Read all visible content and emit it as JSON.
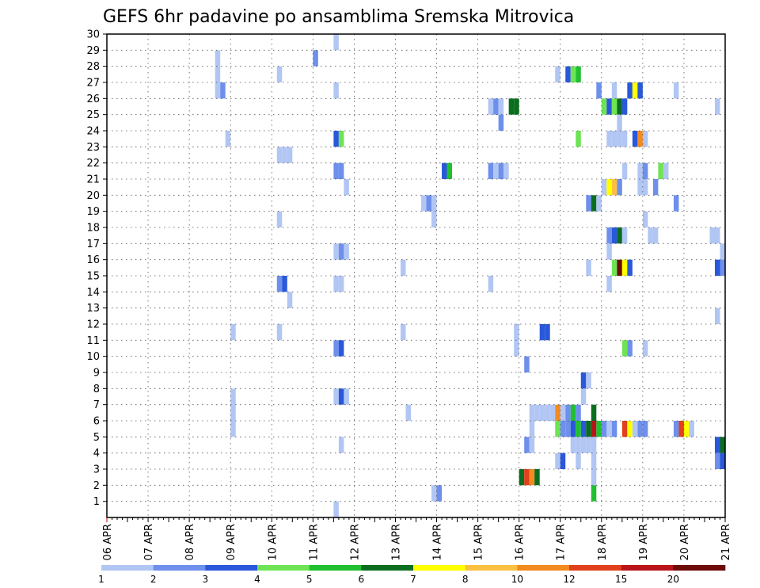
{
  "chart_data": {
    "type": "heatmap",
    "title": "GEFS 6hr padavine po ansamblima Sremska Mitrovica",
    "xlabel": "",
    "ylabel": "",
    "x_ticks": [
      "06 APR",
      "07 APR",
      "08 APR",
      "09 APR",
      "10 APR",
      "11 APR",
      "12 APR",
      "13 APR",
      "14 APR",
      "15 APR",
      "16 APR",
      "17 APR",
      "18 APR",
      "19 APR",
      "20 APR",
      "21 APR"
    ],
    "y_ticks": [
      "1",
      "2",
      "3",
      "4",
      "5",
      "6",
      "7",
      "8",
      "9",
      "10",
      "11",
      "12",
      "13",
      "14",
      "15",
      "16",
      "17",
      "18",
      "19",
      "20",
      "21",
      "22",
      "23",
      "24",
      "25",
      "26",
      "27",
      "28",
      "29",
      "30"
    ],
    "xlim": [
      "06 APR 00Z",
      "21 APR 00Z"
    ],
    "ylim": [
      0,
      30
    ],
    "grid": true,
    "colorbar": {
      "labels": [
        "1",
        "2",
        "3",
        "4",
        "5",
        "6",
        "7",
        "8",
        "10",
        "12",
        "15",
        "20"
      ],
      "colors": [
        "#b2c6f4",
        "#6e90ec",
        "#2a58da",
        "#6ee454",
        "#20c030",
        "#0a6e1e",
        "#ffff00",
        "#fcc040",
        "#f38a1e",
        "#e0401c",
        "#b8141a",
        "#6e0a0a"
      ]
    },
    "cells": [
      [
        30,
        24,
        1
      ],
      [
        30,
        34,
        1
      ],
      [
        30,
        35,
        2
      ],
      [
        30,
        44,
        1
      ],
      [
        30,
        45,
        2
      ],
      [
        30,
        68,
        1
      ],
      [
        30,
        69,
        2
      ],
      [
        30,
        75,
        2
      ],
      [
        29,
        44,
        1
      ],
      [
        28,
        21,
        1
      ],
      [
        28,
        40,
        2
      ],
      [
        27,
        21,
        1
      ],
      [
        27,
        33,
        1
      ],
      [
        27,
        87,
        1
      ],
      [
        27,
        89,
        3
      ],
      [
        27,
        90,
        4
      ],
      [
        27,
        91,
        5
      ],
      [
        26,
        21,
        1
      ],
      [
        26,
        22,
        2
      ],
      [
        26,
        44,
        1
      ],
      [
        26,
        95,
        2
      ],
      [
        26,
        98,
        1
      ],
      [
        26,
        101,
        3
      ],
      [
        26,
        102,
        7
      ],
      [
        26,
        103,
        3
      ],
      [
        26,
        110,
        1
      ],
      [
        25,
        74,
        1
      ],
      [
        25,
        75,
        2
      ],
      [
        25,
        76,
        1
      ],
      [
        25,
        78,
        6
      ],
      [
        25,
        79,
        6
      ],
      [
        25,
        96,
        4
      ],
      [
        25,
        97,
        3
      ],
      [
        25,
        98,
        4
      ],
      [
        25,
        99,
        6
      ],
      [
        25,
        100,
        3
      ],
      [
        25,
        118,
        1
      ],
      [
        24,
        76,
        2
      ],
      [
        24,
        99,
        1
      ],
      [
        23,
        23,
        1
      ],
      [
        23,
        44,
        3
      ],
      [
        23,
        45,
        4
      ],
      [
        23,
        91,
        4
      ],
      [
        23,
        97,
        1
      ],
      [
        23,
        98,
        1
      ],
      [
        23,
        99,
        1
      ],
      [
        23,
        100,
        1
      ],
      [
        23,
        102,
        3
      ],
      [
        23,
        103,
        9
      ],
      [
        23,
        104,
        1
      ],
      [
        22,
        33,
        1
      ],
      [
        22,
        34,
        1
      ],
      [
        22,
        35,
        1
      ],
      [
        21,
        44,
        2
      ],
      [
        21,
        45,
        2
      ],
      [
        21,
        65,
        3
      ],
      [
        21,
        66,
        5
      ],
      [
        21,
        74,
        2
      ],
      [
        21,
        75,
        1
      ],
      [
        21,
        76,
        2
      ],
      [
        21,
        77,
        1
      ],
      [
        21,
        100,
        1
      ],
      [
        21,
        103,
        1
      ],
      [
        21,
        104,
        2
      ],
      [
        21,
        107,
        4
      ],
      [
        21,
        108,
        1
      ],
      [
        20,
        46,
        1
      ],
      [
        20,
        96,
        1
      ],
      [
        20,
        97,
        7
      ],
      [
        20,
        98,
        8
      ],
      [
        20,
        99,
        2
      ],
      [
        20,
        103,
        1
      ],
      [
        20,
        104,
        1
      ],
      [
        20,
        106,
        2
      ],
      [
        19,
        61,
        1
      ],
      [
        19,
        62,
        2
      ],
      [
        19,
        63,
        1
      ],
      [
        19,
        93,
        2
      ],
      [
        19,
        94,
        6
      ],
      [
        19,
        95,
        1
      ],
      [
        19,
        110,
        2
      ],
      [
        18,
        33,
        1
      ],
      [
        18,
        63,
        1
      ],
      [
        18,
        104,
        1
      ],
      [
        17,
        97,
        2
      ],
      [
        17,
        98,
        3
      ],
      [
        17,
        99,
        6
      ],
      [
        17,
        100,
        1
      ],
      [
        17,
        105,
        1
      ],
      [
        17,
        106,
        1
      ],
      [
        17,
        117,
        1
      ],
      [
        17,
        118,
        1
      ],
      [
        16,
        44,
        1
      ],
      [
        16,
        45,
        2
      ],
      [
        16,
        46,
        1
      ],
      [
        16,
        97,
        1
      ],
      [
        16,
        119,
        1
      ],
      [
        15,
        57,
        1
      ],
      [
        15,
        93,
        1
      ],
      [
        15,
        98,
        4
      ],
      [
        15,
        99,
        12
      ],
      [
        15,
        100,
        7
      ],
      [
        15,
        101,
        3
      ],
      [
        15,
        118,
        3
      ],
      [
        15,
        119,
        2
      ],
      [
        14,
        33,
        2
      ],
      [
        14,
        34,
        3
      ],
      [
        14,
        44,
        1
      ],
      [
        14,
        45,
        1
      ],
      [
        14,
        74,
        1
      ],
      [
        14,
        97,
        1
      ],
      [
        13,
        35,
        1
      ],
      [
        12,
        118,
        1
      ],
      [
        11,
        24,
        1
      ],
      [
        11,
        33,
        1
      ],
      [
        11,
        57,
        1
      ],
      [
        11,
        79,
        1
      ],
      [
        11,
        84,
        3
      ],
      [
        11,
        85,
        3
      ],
      [
        10,
        44,
        2
      ],
      [
        10,
        45,
        3
      ],
      [
        10,
        79,
        1
      ],
      [
        10,
        100,
        4
      ],
      [
        10,
        101,
        2
      ],
      [
        10,
        104,
        1
      ],
      [
        9,
        81,
        2
      ],
      [
        8,
        92,
        3
      ],
      [
        8,
        93,
        1
      ],
      [
        7,
        24,
        1
      ],
      [
        7,
        44,
        1
      ],
      [
        7,
        45,
        3
      ],
      [
        7,
        46,
        1
      ],
      [
        7,
        92,
        1
      ],
      [
        6,
        24,
        1
      ],
      [
        6,
        58,
        1
      ],
      [
        6,
        82,
        1
      ],
      [
        6,
        83,
        1
      ],
      [
        6,
        84,
        1
      ],
      [
        6,
        85,
        1
      ],
      [
        6,
        86,
        1
      ],
      [
        6,
        87,
        9
      ],
      [
        6,
        88,
        1
      ],
      [
        6,
        89,
        2
      ],
      [
        6,
        90,
        5
      ],
      [
        6,
        91,
        2
      ],
      [
        6,
        94,
        6
      ],
      [
        5,
        24,
        1
      ],
      [
        5,
        82,
        1
      ],
      [
        5,
        87,
        4
      ],
      [
        5,
        88,
        2
      ],
      [
        5,
        89,
        2
      ],
      [
        5,
        90,
        3
      ],
      [
        5,
        91,
        5
      ],
      [
        5,
        92,
        3
      ],
      [
        5,
        93,
        6
      ],
      [
        5,
        94,
        11
      ],
      [
        5,
        95,
        5
      ],
      [
        5,
        96,
        2
      ],
      [
        5,
        97,
        1
      ],
      [
        5,
        98,
        2
      ],
      [
        5,
        100,
        10
      ],
      [
        5,
        101,
        7
      ],
      [
        5,
        102,
        1
      ],
      [
        5,
        103,
        2
      ],
      [
        5,
        104,
        2
      ],
      [
        5,
        110,
        2
      ],
      [
        5,
        111,
        10
      ],
      [
        5,
        112,
        7
      ],
      [
        5,
        113,
        1
      ],
      [
        4,
        45,
        1
      ],
      [
        4,
        81,
        2
      ],
      [
        4,
        82,
        1
      ],
      [
        4,
        90,
        1
      ],
      [
        4,
        91,
        1
      ],
      [
        4,
        92,
        1
      ],
      [
        4,
        93,
        1
      ],
      [
        4,
        94,
        1
      ],
      [
        4,
        118,
        3
      ],
      [
        4,
        119,
        6
      ],
      [
        3,
        87,
        1
      ],
      [
        3,
        88,
        3
      ],
      [
        3,
        91,
        1
      ],
      [
        3,
        94,
        1
      ],
      [
        3,
        118,
        2
      ],
      [
        3,
        119,
        3
      ],
      [
        2,
        80,
        6
      ],
      [
        2,
        81,
        10
      ],
      [
        2,
        82,
        9
      ],
      [
        2,
        83,
        6
      ],
      [
        2,
        94,
        1
      ],
      [
        1,
        63,
        1
      ],
      [
        1,
        64,
        2
      ],
      [
        1,
        94,
        5
      ],
      [
        0,
        44,
        1
      ]
    ]
  }
}
